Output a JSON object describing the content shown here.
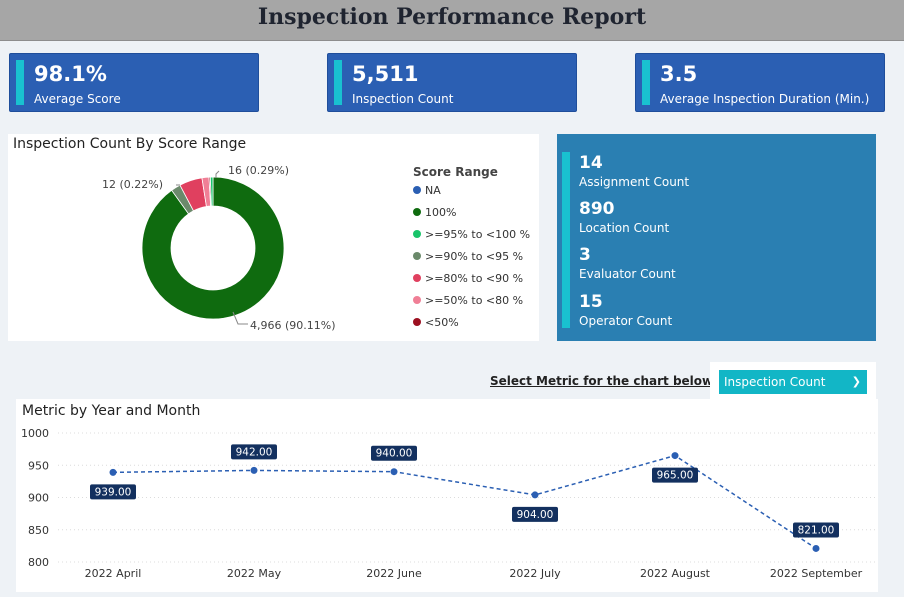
{
  "header": {
    "title": "Inspection Performance Report"
  },
  "kpis": [
    {
      "value": "98.1%",
      "label": "Average Score"
    },
    {
      "value": "5,511",
      "label": "Inspection Count"
    },
    {
      "value": "3.5",
      "label": "Average Inspection Duration (Min.)"
    }
  ],
  "donut": {
    "title": "Inspection Count By Score Range",
    "legend_title": "Score Range",
    "legend": [
      {
        "label": "NA",
        "color": "#2b5fb3"
      },
      {
        "label": "100%",
        "color": "#0f6b0f"
      },
      {
        "label": ">=95% to <100 %",
        "color": "#19c46a"
      },
      {
        "label": ">=90% to <95 %",
        "color": "#6b8a6b"
      },
      {
        "label": ">=80% to <90 %",
        "color": "#e0405f"
      },
      {
        "label": ">=50% to <80 %",
        "color": "#f07f96"
      },
      {
        "label": "<50%",
        "color": "#9c1021"
      }
    ],
    "labels": {
      "top_right": "16 (0.29%)",
      "top_left": "12 (0.22%)",
      "bottom": "4,966 (90.11%)"
    }
  },
  "stats": [
    {
      "value": "14",
      "label": "Assignment Count"
    },
    {
      "value": "890",
      "label": "Location Count"
    },
    {
      "value": "3",
      "label": "Evaluator Count"
    },
    {
      "value": "15",
      "label": "Operator Count"
    }
  ],
  "selector": {
    "label": "Select Metric for the chart below :",
    "selected": "Inspection Count"
  },
  "chart_data": {
    "type": "line",
    "title": "Metric by Year and Month",
    "categories": [
      "2022 April",
      "2022 May",
      "2022 June",
      "2022 July",
      "2022 August",
      "2022 September"
    ],
    "values": [
      939,
      942,
      940,
      904,
      965,
      821
    ],
    "data_labels": [
      "939.00",
      "942.00",
      "940.00",
      "904.00",
      "965.00",
      "821.00"
    ],
    "ylim": [
      800,
      1000
    ],
    "yticks": [
      800,
      850,
      900,
      950,
      1000
    ],
    "ytick_labels": [
      "800",
      "850",
      "900",
      "950",
      "1000"
    ],
    "line_color": "#2b5fb3",
    "label_bg": "#13305f",
    "grid": true
  },
  "colors": {
    "kpi_bg": "#2b5fb3",
    "accent": "#19c1d0",
    "stats_bg": "#2a7fb2"
  }
}
